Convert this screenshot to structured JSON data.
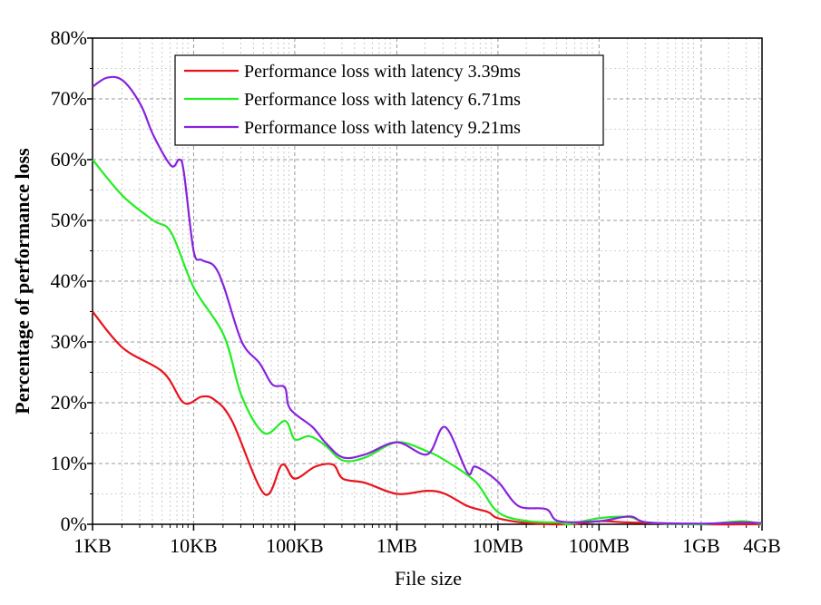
{
  "chart_data": {
    "type": "line",
    "xlabel": "File size",
    "ylabel": "Percentage of performance loss",
    "x_scale": "log",
    "x_unit": "bytes",
    "xlim": [
      1024,
      4294967296
    ],
    "ylim": [
      0,
      80
    ],
    "grid": true,
    "legend_position": "top-center",
    "x_ticks": [
      {
        "value": 1024,
        "label": "1KB"
      },
      {
        "value": 10240,
        "label": "10KB"
      },
      {
        "value": 102400,
        "label": "100KB"
      },
      {
        "value": 1048576,
        "label": "1MB"
      },
      {
        "value": 10485760,
        "label": "10MB"
      },
      {
        "value": 104857600,
        "label": "100MB"
      },
      {
        "value": 1073741824,
        "label": "1GB"
      },
      {
        "value": 4294967296,
        "label": "4GB"
      }
    ],
    "y_ticks": [
      {
        "value": 0,
        "label": "0%"
      },
      {
        "value": 10,
        "label": "10%"
      },
      {
        "value": 20,
        "label": "20%"
      },
      {
        "value": 30,
        "label": "30%"
      },
      {
        "value": 40,
        "label": "40%"
      },
      {
        "value": 50,
        "label": "50%"
      },
      {
        "value": 60,
        "label": "60%"
      },
      {
        "value": 70,
        "label": "70%"
      },
      {
        "value": 80,
        "label": "80%"
      }
    ],
    "series": [
      {
        "name": "Performance loss with latency 3.39ms",
        "color": "#e8141c",
        "points": [
          [
            1024,
            35
          ],
          [
            2048,
            29
          ],
          [
            5120,
            25
          ],
          [
            8192,
            20
          ],
          [
            12288,
            21
          ],
          [
            16384,
            20.5
          ],
          [
            24576,
            17
          ],
          [
            51200,
            5
          ],
          [
            76800,
            9.8
          ],
          [
            102400,
            7.5
          ],
          [
            163840,
            9.5
          ],
          [
            245760,
            9.8
          ],
          [
            307200,
            7.5
          ],
          [
            512000,
            6.8
          ],
          [
            1048576,
            5
          ],
          [
            2097152,
            5.5
          ],
          [
            3145728,
            5
          ],
          [
            5242880,
            3
          ],
          [
            8388608,
            2
          ],
          [
            10485760,
            1
          ],
          [
            20971520,
            0.2
          ],
          [
            52428800,
            0
          ],
          [
            104857600,
            0.5
          ],
          [
            209715200,
            0.3
          ],
          [
            1073741824,
            0
          ],
          [
            4294967296,
            0
          ]
        ]
      },
      {
        "name": "Performance loss with latency 6.71ms",
        "color": "#22ee22",
        "points": [
          [
            1024,
            60
          ],
          [
            2048,
            54
          ],
          [
            4096,
            50
          ],
          [
            6144,
            48
          ],
          [
            10240,
            39
          ],
          [
            20480,
            31
          ],
          [
            30720,
            21
          ],
          [
            51200,
            15
          ],
          [
            81920,
            17
          ],
          [
            102400,
            14
          ],
          [
            143360,
            14.5
          ],
          [
            204800,
            13
          ],
          [
            307200,
            10.5
          ],
          [
            512000,
            11
          ],
          [
            1048576,
            13.5
          ],
          [
            2097152,
            12
          ],
          [
            3145728,
            10.5
          ],
          [
            6291456,
            7
          ],
          [
            10485760,
            2
          ],
          [
            20971520,
            0.5
          ],
          [
            41943040,
            0.3
          ],
          [
            52428800,
            0
          ],
          [
            104857600,
            1
          ],
          [
            209715200,
            1.2
          ],
          [
            314572800,
            0.3
          ],
          [
            1073741824,
            0
          ],
          [
            2684354560,
            0.5
          ],
          [
            4294967296,
            0
          ]
        ]
      },
      {
        "name": "Performance loss with latency 9.21ms",
        "color": "#8822dd",
        "points": [
          [
            1024,
            72
          ],
          [
            1434,
            73.5
          ],
          [
            2048,
            73
          ],
          [
            3072,
            69
          ],
          [
            4096,
            64
          ],
          [
            6144,
            59
          ],
          [
            7373,
            60
          ],
          [
            8192,
            58
          ],
          [
            10240,
            45
          ],
          [
            12288,
            43.5
          ],
          [
            16384,
            42.5
          ],
          [
            20480,
            39
          ],
          [
            30720,
            30
          ],
          [
            46080,
            26.5
          ],
          [
            61440,
            23
          ],
          [
            81920,
            22.5
          ],
          [
            92160,
            19
          ],
          [
            153600,
            16
          ],
          [
            204800,
            13.5
          ],
          [
            307200,
            11
          ],
          [
            512000,
            11.5
          ],
          [
            1048576,
            13.5
          ],
          [
            2097152,
            11.5
          ],
          [
            3145728,
            16
          ],
          [
            5242880,
            8.5
          ],
          [
            6291456,
            9.5
          ],
          [
            10485760,
            7
          ],
          [
            16777216,
            3
          ],
          [
            31457280,
            2.5
          ],
          [
            41943040,
            0.5
          ],
          [
            104857600,
            0.5
          ],
          [
            209715200,
            1.3
          ],
          [
            314572800,
            0.3
          ],
          [
            1073741824,
            0.1
          ],
          [
            2684354560,
            0.3
          ],
          [
            4294967296,
            0.2
          ]
        ]
      }
    ]
  }
}
